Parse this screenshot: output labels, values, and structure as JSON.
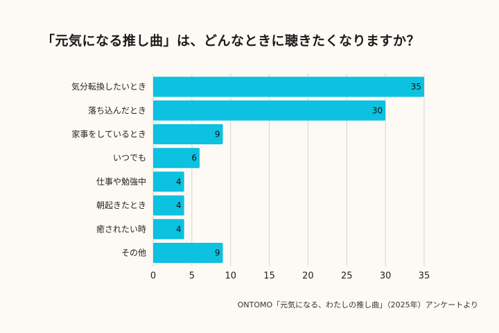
{
  "source_note": "ONTOMO「元気になる、わたしの推し曲」（2025年）アンケートより",
  "colors": {
    "bar": "#0DC1E0",
    "grid": "#D5D5D5",
    "background": "#FDF9F4"
  },
  "chart_data": {
    "type": "bar",
    "orientation": "horizontal",
    "title": "「元気になる推し曲」は、どんなときに聴きたくなりますか？",
    "categories": [
      "気分転換したいとき",
      "落ち込んだとき",
      "家事をしているとき",
      "いつでも",
      "仕事や勉強中",
      "朝起きたとき",
      "癒されたい時",
      "その他"
    ],
    "values": [
      35,
      30,
      9,
      6,
      4,
      4,
      4,
      9
    ],
    "xlim": [
      0,
      35
    ],
    "xticks": [
      0,
      5,
      10,
      15,
      20,
      25,
      30,
      35
    ],
    "grid": true,
    "xlabel": "",
    "ylabel": ""
  }
}
